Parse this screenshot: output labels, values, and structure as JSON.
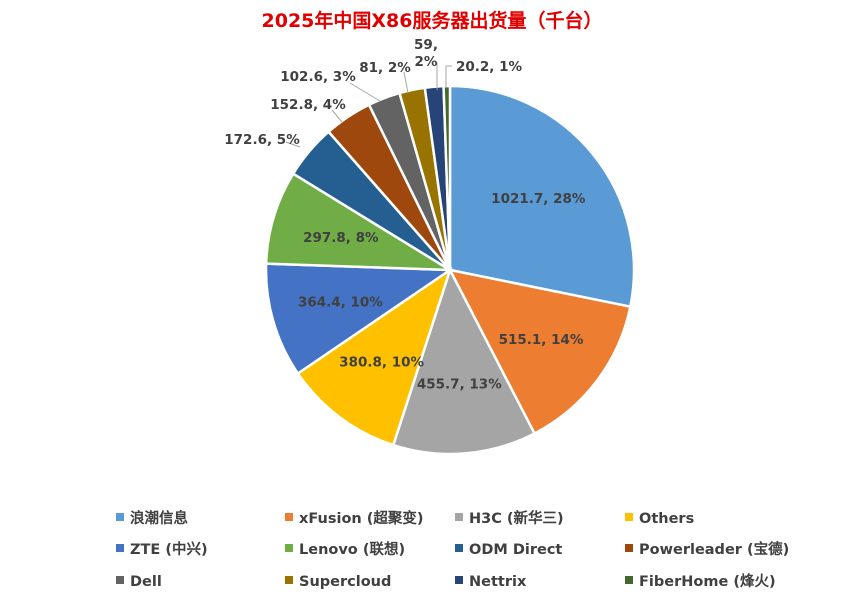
{
  "chart_data": {
    "type": "pie",
    "title": "2025年中国X86服务器出货量（千台）",
    "slices": [
      {
        "name": "浪潮信息",
        "value": 1021.7,
        "percent": "28%",
        "label": "1021.7, 28%",
        "color": "#5b9bd5"
      },
      {
        "name": "xFusion (超聚变)",
        "value": 515.1,
        "percent": "14%",
        "label": "515.1, 14%",
        "color": "#ed7d31"
      },
      {
        "name": "H3C (新华三)",
        "value": 455.7,
        "percent": "13%",
        "label": "455.7, 13%",
        "color": "#a5a5a5"
      },
      {
        "name": "Others",
        "value": 380.8,
        "percent": "10%",
        "label": "380.8, 10%",
        "color": "#ffc000"
      },
      {
        "name": "ZTE (中兴)",
        "value": 364.4,
        "percent": "10%",
        "label": "364.4, 10%",
        "color": "#4472c4"
      },
      {
        "name": "Lenovo (联想)",
        "value": 297.8,
        "percent": "8%",
        "label": "297.8, 8%",
        "color": "#70ad47"
      },
      {
        "name": "ODM Direct",
        "value": 172.6,
        "percent": "5%",
        "label": "172.6, 5%",
        "color": "#255e91"
      },
      {
        "name": "Powerleader (宝德)",
        "value": 152.8,
        "percent": "4%",
        "label": "152.8, 4%",
        "color": "#9e480e"
      },
      {
        "name": "Dell",
        "value": 102.6,
        "percent": "3%",
        "label": "102.6, 3%",
        "color": "#636363"
      },
      {
        "name": "Supercloud",
        "value": 81,
        "percent": "2%",
        "label": "81, 2%",
        "color": "#997300"
      },
      {
        "name": "Nettrix",
        "value": 59,
        "percent": "2%",
        "label": "59, 2%",
        "color": "#264478"
      },
      {
        "name": "FiberHome (烽火)",
        "value": 20.2,
        "percent": "1%",
        "label": "20.2, 1%",
        "color": "#43682b"
      }
    ],
    "legend_position": "bottom",
    "legend_columns": 4
  }
}
